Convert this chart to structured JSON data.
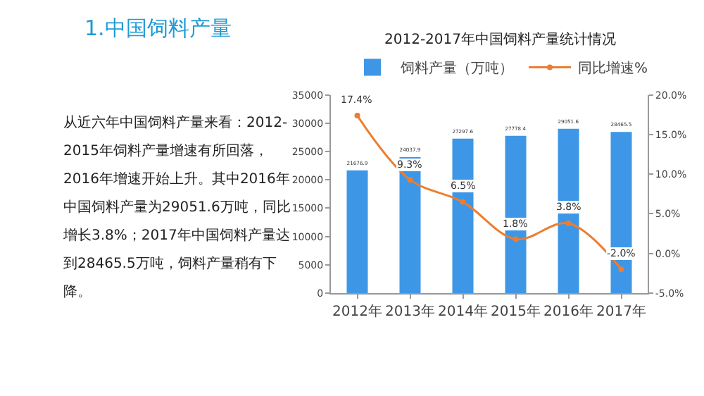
{
  "chart_data": {
    "type": "bar",
    "title": "1.中国饲料产量",
    "subtitle": "2012-2017年中国饲料产量统计情况",
    "annotations": [
      "从近六年中国饲料产量来看：2012-2015年饲料产量增速有所回落，2016年增速开始上升。其中2016年中国饲料产量为29051.6万吨，同比增长3.8%；2017年中国饲料产量达到28465.5万吨，饲料产量稍有下降。"
    ],
    "categories": [
      "2012年",
      "2013年",
      "2014年",
      "2015年",
      "2016年",
      "2017年"
    ],
    "series": [
      {
        "name": "饲料产量（万吨）",
        "color": "#3d97e6",
        "values": [
          21676.9,
          24037.9,
          27297.6,
          27778.4,
          29051.6,
          28465.5
        ],
        "value_labels": [
          "21676.9",
          "24037.9",
          "27297.6",
          "27778.4",
          "29051.6",
          "28465.5"
        ]
      },
      {
        "name": "同比增速%",
        "type": "line",
        "axis": "y2",
        "color": "#ed7d31",
        "values": [
          17.4,
          9.3,
          6.5,
          1.8,
          3.8,
          -2.0
        ],
        "value_labels": [
          "17.4%",
          "9.3%",
          "6.5%",
          "1.8%",
          "3.8%",
          "-2.0%"
        ]
      }
    ],
    "ylim": [
      0,
      35000
    ],
    "yticks": [
      0,
      5000,
      10000,
      15000,
      20000,
      25000,
      30000,
      35000
    ],
    "y2lim": [
      -5,
      20
    ],
    "y2ticks": [
      {
        "value": -5,
        "label": "-5.0%"
      },
      {
        "value": 0,
        "label": "0.0%"
      },
      {
        "value": 5,
        "label": "5.0%"
      },
      {
        "value": 10,
        "label": "10.0%"
      },
      {
        "value": 15,
        "label": "15.0%"
      },
      {
        "value": 20,
        "label": "20.0%"
      }
    ],
    "legend": "top",
    "grid": false,
    "marker": "circle"
  }
}
